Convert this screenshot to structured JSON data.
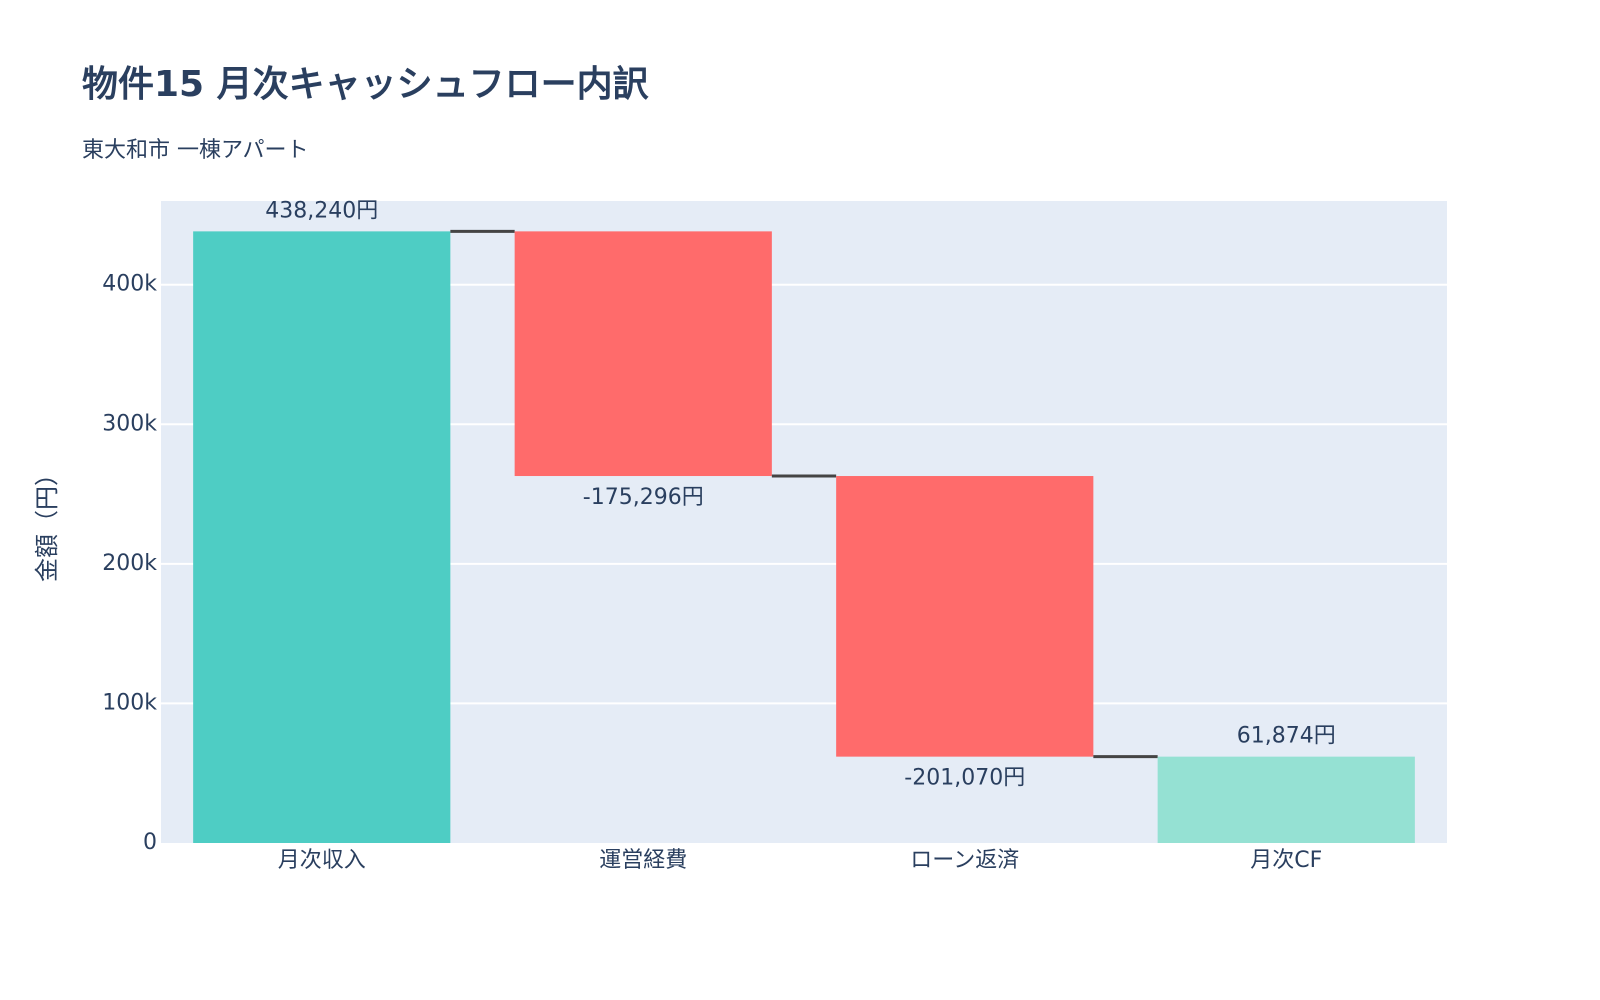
{
  "chart_data": {
    "type": "waterfall",
    "title": "物件15 月次キャッシュフロー内訳",
    "subtitle": "東大和市 一棟アパート",
    "y_label": "金額（円）",
    "categories": [
      "月次収入",
      "運営経費",
      "ローン返済",
      "月次CF"
    ],
    "measures": [
      "absolute",
      "relative",
      "relative",
      "total"
    ],
    "values": [
      438240,
      -175296,
      -201070,
      61874
    ],
    "value_labels": [
      "438,240円",
      "-175,296円",
      "-201,070円",
      "61,874円"
    ],
    "increasing_color": "#4ecdc4",
    "decreasing_color": "#ff6b6b",
    "total_color": "#95e1d3",
    "ylim": [
      0,
      460000
    ],
    "yticks": [
      0,
      {
        "value": 100000,
        "label": "100k"
      },
      {
        "value": 200000,
        "label": "200k"
      },
      {
        "value": 300000,
        "label": "300k"
      },
      {
        "value": 400000,
        "label": "400k"
      }
    ],
    "grid": true
  }
}
